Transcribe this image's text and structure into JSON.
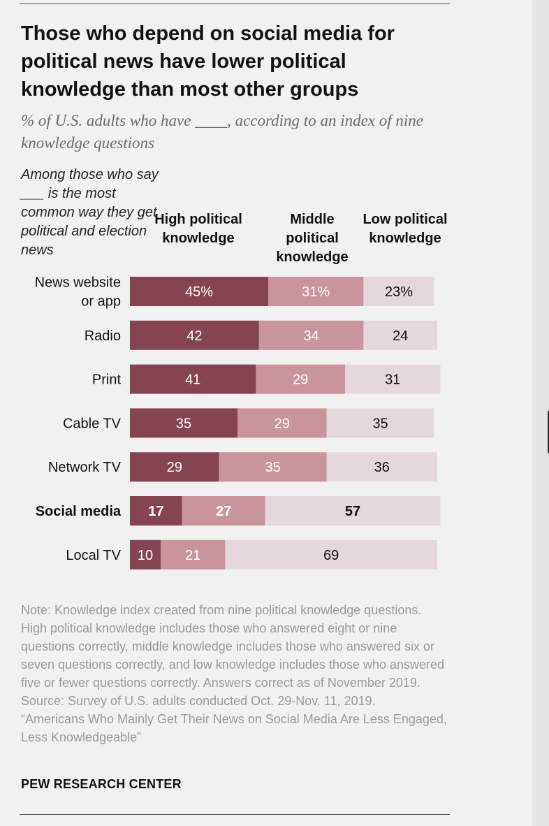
{
  "title": "Those who depend on social media for political news have lower political knowledge than most other groups",
  "subtitle": "% of U.S. adults who have ____, according to an index of nine knowledge questions",
  "row_header": "Among those who say ___ is the most common way they get political and election news",
  "column_headers": {
    "high": "High political knowledge",
    "middle": "Middle political knowledge",
    "low": "Low political knowledge"
  },
  "colors": {
    "high": "#844452",
    "middle": "#c9949c",
    "low": "#e5d8dc"
  },
  "chart_data": {
    "type": "bar",
    "orientation": "horizontal",
    "stacked": true,
    "categories": [
      "News website or app",
      "Radio",
      "Print",
      "Cable TV",
      "Network TV",
      "Social media",
      "Local TV"
    ],
    "highlighted_category": "Social media",
    "series": [
      {
        "key": "high",
        "values": [
          45,
          42,
          41,
          35,
          29,
          17,
          10
        ]
      },
      {
        "key": "middle",
        "values": [
          31,
          34,
          29,
          29,
          35,
          27,
          21
        ]
      },
      {
        "key": "low",
        "values": [
          23,
          24,
          31,
          35,
          36,
          57,
          69
        ]
      }
    ],
    "first_row_suffix": "%"
  },
  "note_lines": [
    "Note: Knowledge index created from nine political knowledge questions. High political knowledge includes those who answered eight or nine questions correctly, middle knowledge includes those who answered six or seven questions correctly, and low knowledge includes those who answered five or fewer questions correctly. Answers correct as of November 2019.",
    "Source: Survey of U.S. adults conducted Oct. 29-Nov. 11, 2019.",
    "“Americans Who Mainly Get Their News on Social Media Are Less Engaged, Less Knowledgeable”"
  ],
  "source_logo": "PEW RESEARCH CENTER"
}
